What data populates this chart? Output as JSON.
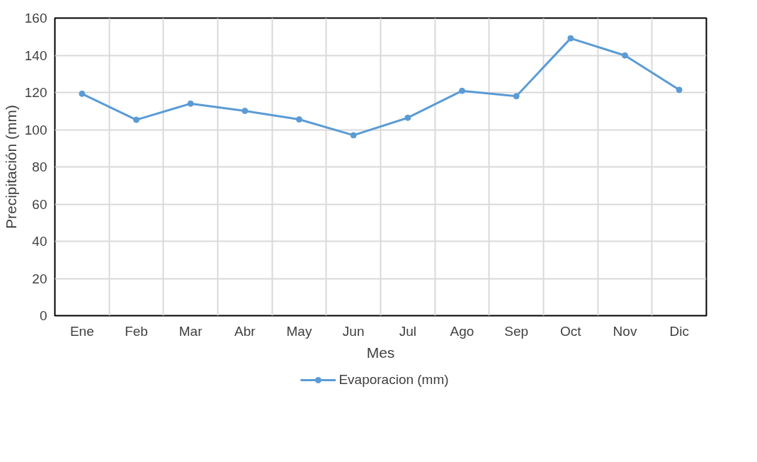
{
  "chart_data": {
    "type": "line",
    "xlabel": "Mes",
    "ylabel": "Precipitación (mm)",
    "categories": [
      "Ene",
      "Feb",
      "Mar",
      "Abr",
      "May",
      "Jun",
      "Jul",
      "Ago",
      "Sep",
      "Oct",
      "Nov",
      "Dic"
    ],
    "series": [
      {
        "name": "Evaporacion (mm)",
        "color": "#5b9bd5",
        "values": [
          119.3,
          105.3,
          114.0,
          110.1,
          105.5,
          97.0,
          106.4,
          120.9,
          118.0,
          149.1,
          139.9,
          121.4
        ]
      }
    ],
    "ylim": [
      0,
      160
    ],
    "yticks": [
      0,
      20,
      40,
      60,
      80,
      100,
      120,
      140,
      160
    ],
    "grid": true,
    "legend": "bottom",
    "marker": "circle",
    "line_style": "solid"
  }
}
